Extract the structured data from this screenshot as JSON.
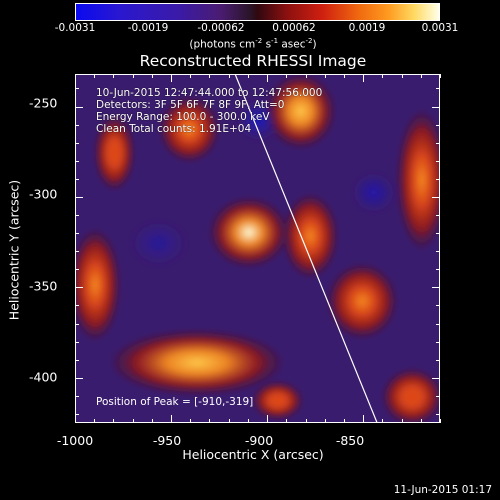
{
  "colorbar": {
    "ticks": [
      "-0.0031",
      "-0.0019",
      "-0.00062",
      "0.00062",
      "0.0019",
      "0.0031"
    ],
    "units": "(photons cm",
    "units_exp1": "-2",
    "units_mid": " s",
    "units_exp2": "-1",
    "units_mid2": " asec",
    "units_exp3": "-2",
    "units_end": ")"
  },
  "title": "Reconstructed RHESSI Image",
  "info": {
    "time_range": "10-Jun-2015 12:47:44.000 to 12:47:56.000",
    "detectors": "Detectors: 3F 5F 6F 7F 8F 9F, Att=0",
    "energy": "Energy Range: 100.0 - 300.0 keV",
    "clean": "Clean     Total counts: 1.91E+04",
    "peak": "Position of Peak = [-910,-319]"
  },
  "footer": {
    "date": "11-Jun-2015 01:17"
  },
  "chart_data": {
    "type": "heatmap",
    "title": "Reconstructed RHESSI Image",
    "xlabel": "Heliocentric X (arcsec)",
    "ylabel": "Heliocentric Y (arcsec)",
    "xlim": [
      -1000,
      -810
    ],
    "ylim": [
      -425,
      -232
    ],
    "xticks": [
      "-1000",
      "-950",
      "-900",
      "-850"
    ],
    "yticks": [
      "-250",
      "-300",
      "-350",
      "-400"
    ],
    "colorbar_range": [
      -0.0031,
      0.0031
    ],
    "peak": [
      -910,
      -319
    ],
    "limb_line": [
      [
        -917,
        -232
      ],
      [
        -843,
        -425
      ]
    ],
    "sources": [
      {
        "x": -910,
        "y": -319,
        "intensity": 1.0,
        "rx": 16,
        "ry": 15
      },
      {
        "x": -883,
        "y": -252,
        "intensity": 0.72,
        "rx": 14,
        "ry": 16
      },
      {
        "x": -941,
        "y": -262,
        "intensity": 0.55,
        "rx": 12,
        "ry": 14
      },
      {
        "x": -937,
        "y": -391,
        "intensity": 0.62,
        "rx": 35,
        "ry": 14
      },
      {
        "x": -878,
        "y": -321,
        "intensity": 0.5,
        "rx": 11,
        "ry": 18
      },
      {
        "x": -851,
        "y": -357,
        "intensity": 0.55,
        "rx": 14,
        "ry": 16
      },
      {
        "x": -990,
        "y": -348,
        "intensity": 0.5,
        "rx": 10,
        "ry": 24
      },
      {
        "x": -820,
        "y": -290,
        "intensity": 0.5,
        "rx": 10,
        "ry": 30
      },
      {
        "x": -980,
        "y": -275,
        "intensity": 0.35,
        "rx": 8,
        "ry": 16
      },
      {
        "x": -825,
        "y": -410,
        "intensity": 0.35,
        "rx": 12,
        "ry": 12
      },
      {
        "x": -895,
        "y": -412,
        "intensity": 0.3,
        "rx": 10,
        "ry": 8
      }
    ],
    "negative_sources": [
      {
        "x": -905,
        "y": -257,
        "intensity": 0.9,
        "rx": 12,
        "ry": 12
      },
      {
        "x": -845,
        "y": -297,
        "intensity": 0.7,
        "rx": 12,
        "ry": 12
      },
      {
        "x": -957,
        "y": -325,
        "intensity": 0.5,
        "rx": 16,
        "ry": 14
      }
    ]
  }
}
